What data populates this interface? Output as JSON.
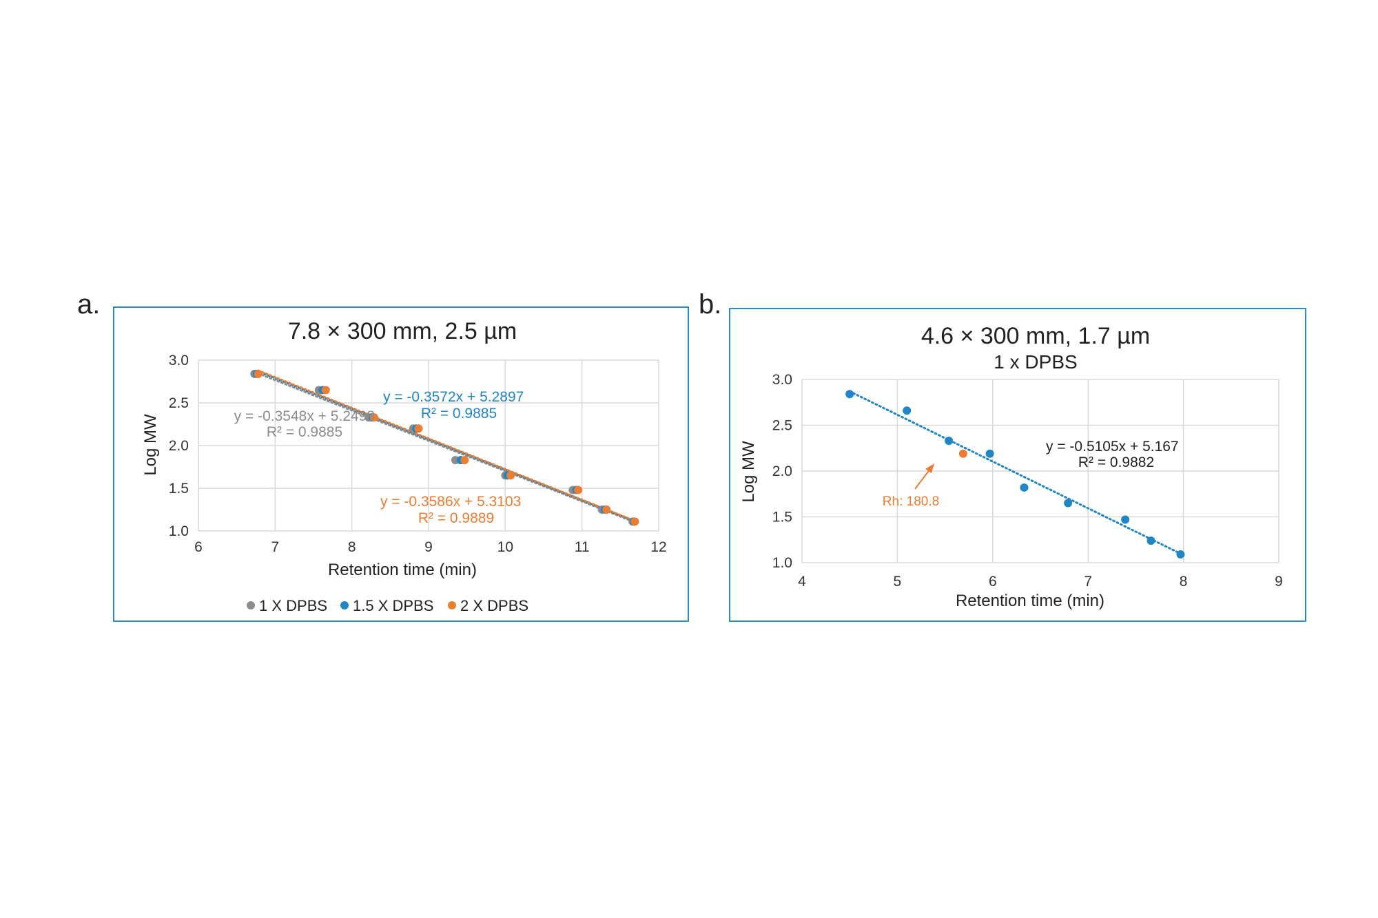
{
  "panels": [
    {
      "letter": "a."
    },
    {
      "letter": "b."
    }
  ],
  "chart_data": [
    {
      "type": "scatter",
      "title": "7.8 × 300 mm, 2.5 µm",
      "xlabel": "Retention time (min)",
      "ylabel": "Log MW",
      "xlim": [
        6,
        12
      ],
      "ylim": [
        1.0,
        3.0
      ],
      "xticks": [
        6,
        7,
        8,
        9,
        10,
        11,
        12
      ],
      "yticks": [
        1.0,
        1.5,
        2.0,
        2.5,
        3.0
      ],
      "xtick_labels": [
        "6",
        "7",
        "8",
        "9",
        "10",
        "11",
        "12"
      ],
      "ytick_labels": [
        "1.0",
        "1.5",
        "2.0",
        "2.5",
        "3.0"
      ],
      "grid": true,
      "legend_position": "bottom",
      "series": [
        {
          "name": "1 X DPBS",
          "color": "#8C8C8C",
          "x": [
            6.73,
            7.57,
            8.22,
            8.8,
            9.35,
            10.0,
            10.88,
            11.26,
            11.66
          ],
          "y": [
            2.84,
            2.65,
            2.33,
            2.2,
            1.83,
            1.65,
            1.48,
            1.25,
            1.11
          ],
          "trendline": {
            "slope": -0.3548,
            "intercept": 5.2498,
            "equation": "y = -0.3548x + 5.2498",
            "r2": "R² = 0.9885"
          }
        },
        {
          "name": "1.5 X DPBS",
          "color": "#1F86C7",
          "x": [
            6.76,
            7.62,
            8.26,
            8.84,
            9.42,
            10.03,
            10.93,
            11.3,
            11.68
          ],
          "y": [
            2.84,
            2.65,
            2.33,
            2.2,
            1.83,
            1.65,
            1.48,
            1.25,
            1.11
          ],
          "trendline": {
            "slope": -0.3572,
            "intercept": 5.2897,
            "equation": "y = -0.3572x + 5.2897",
            "r2": "R² = 0.9885"
          }
        },
        {
          "name": "2 X DPBS",
          "color": "#ED7D31",
          "x": [
            6.78,
            7.66,
            8.29,
            8.87,
            9.47,
            10.07,
            10.95,
            11.32,
            11.69
          ],
          "y": [
            2.84,
            2.65,
            2.33,
            2.2,
            1.83,
            1.65,
            1.48,
            1.25,
            1.11
          ],
          "trendline": {
            "slope": -0.3586,
            "intercept": 5.3103,
            "equation": "y = -0.3586x + 5.3103",
            "r2": "R² = 0.9889"
          }
        }
      ]
    },
    {
      "type": "scatter",
      "title": "4.6 × 300 mm, 1.7 µm",
      "subtitle": "1 x DPBS",
      "xlabel": "Retention time (min)",
      "ylabel": "Log MW",
      "xlim": [
        4,
        9
      ],
      "ylim": [
        1.0,
        3.0
      ],
      "xticks": [
        4,
        5,
        6,
        7,
        8,
        9
      ],
      "yticks": [
        1.0,
        1.5,
        2.0,
        2.5,
        3.0
      ],
      "xtick_labels": [
        "4",
        "5",
        "6",
        "7",
        "8",
        "9"
      ],
      "ytick_labels": [
        "1.0",
        "1.5",
        "2.0",
        "2.5",
        "3.0"
      ],
      "grid": true,
      "series": [
        {
          "color": "#1F86C7",
          "x": [
            4.5,
            5.1,
            5.54,
            5.97,
            6.33,
            6.79,
            7.39,
            7.66,
            7.97
          ],
          "y": [
            2.84,
            2.66,
            2.33,
            2.19,
            1.82,
            1.65,
            1.47,
            1.24,
            1.09
          ],
          "trendline": {
            "slope": -0.5105,
            "intercept": 5.167,
            "equation": "y = -0.5105x + 5.167",
            "r2": "R² = 0.9882"
          }
        },
        {
          "color": "#ED7D31",
          "x": [
            5.69
          ],
          "y": [
            2.19
          ]
        }
      ],
      "annotations": [
        {
          "text": "Rh: 180.8",
          "color": "#ED7D31",
          "x": 5.69,
          "y": 2.19
        }
      ]
    }
  ]
}
